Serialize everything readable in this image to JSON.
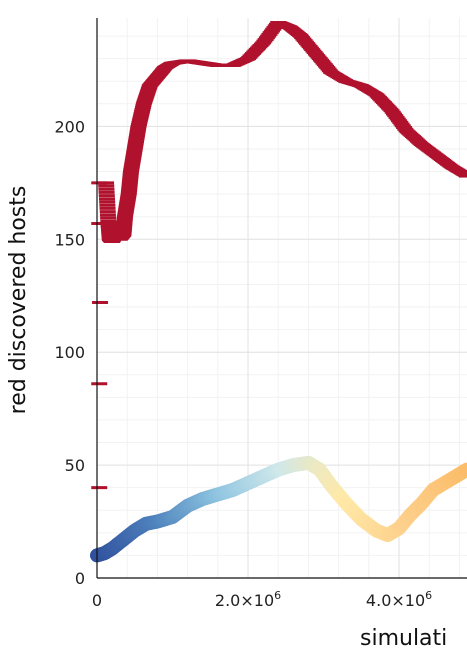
{
  "chart_data": {
    "type": "scatter",
    "xlabel": "simulati",
    "ylabel": "red discovered hosts",
    "xlim": [
      0,
      4900000
    ],
    "ylim": [
      0,
      248
    ],
    "x_ticks": [
      0,
      2000000,
      4000000
    ],
    "x_tick_labels": [
      {
        "base": "0",
        "exp": ""
      },
      {
        "base": "2.0×10",
        "exp": "6"
      },
      {
        "base": "4.0×10",
        "exp": "6"
      }
    ],
    "y_ticks": [
      0,
      50,
      100,
      150,
      200
    ],
    "y_tick_labels": [
      "0",
      "50",
      "100",
      "150",
      "200"
    ],
    "grid": true,
    "series": [
      {
        "style": "dash",
        "color": "#b0122e",
        "points": [
          [
            30000,
            40
          ],
          [
            30000,
            86
          ],
          [
            40000,
            122
          ],
          [
            30000,
            157
          ],
          [
            30000,
            175
          ],
          [
            120000,
            175
          ],
          [
            150000,
            158
          ],
          [
            170000,
            150
          ],
          [
            200000,
            149
          ],
          [
            250000,
            152
          ],
          [
            300000,
            150
          ],
          [
            350000,
            152
          ],
          [
            370000,
            160
          ],
          [
            420000,
            170
          ],
          [
            450000,
            180
          ],
          [
            500000,
            190
          ],
          [
            550000,
            200
          ],
          [
            620000,
            210
          ],
          [
            700000,
            218
          ],
          [
            800000,
            222
          ],
          [
            900000,
            226
          ],
          [
            1000000,
            228
          ],
          [
            1200000,
            229
          ],
          [
            1400000,
            228
          ],
          [
            1600000,
            227
          ],
          [
            1800000,
            227
          ],
          [
            2000000,
            230
          ],
          [
            2200000,
            237
          ],
          [
            2400000,
            246
          ],
          [
            2550000,
            244
          ],
          [
            2700000,
            240
          ],
          [
            2900000,
            232
          ],
          [
            3100000,
            224
          ],
          [
            3300000,
            220
          ],
          [
            3500000,
            218
          ],
          [
            3700000,
            214
          ],
          [
            3900000,
            207
          ],
          [
            4100000,
            198
          ],
          [
            4300000,
            192
          ],
          [
            4500000,
            187
          ],
          [
            4700000,
            182
          ],
          [
            4900000,
            178
          ]
        ]
      },
      {
        "style": "circle",
        "color_scale": [
          "#2f4f9c",
          "#4f83bd",
          "#8ec4e0",
          "#cfe8ea",
          "#ffe9a8",
          "#fdd08c",
          "#fbbd6a"
        ],
        "points": [
          [
            0,
            10
          ],
          [
            100000,
            11
          ],
          [
            200000,
            13
          ],
          [
            350000,
            17
          ],
          [
            500000,
            21
          ],
          [
            650000,
            24
          ],
          [
            800000,
            25
          ],
          [
            1000000,
            27
          ],
          [
            1200000,
            32
          ],
          [
            1400000,
            35
          ],
          [
            1600000,
            37
          ],
          [
            1800000,
            39
          ],
          [
            2000000,
            42
          ],
          [
            2200000,
            45
          ],
          [
            2400000,
            48
          ],
          [
            2600000,
            50
          ],
          [
            2800000,
            51
          ],
          [
            2950000,
            48
          ],
          [
            3100000,
            41
          ],
          [
            3300000,
            33
          ],
          [
            3500000,
            26
          ],
          [
            3700000,
            21
          ],
          [
            3850000,
            19
          ],
          [
            4000000,
            22
          ],
          [
            4150000,
            28
          ],
          [
            4300000,
            33
          ],
          [
            4450000,
            39
          ],
          [
            4600000,
            42
          ],
          [
            4750000,
            45
          ],
          [
            4900000,
            48
          ]
        ]
      }
    ]
  }
}
